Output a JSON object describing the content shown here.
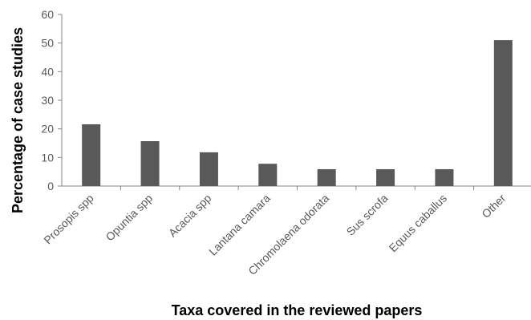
{
  "chart_data": {
    "type": "bar",
    "categories": [
      "Prosopis spp",
      "Opuntia spp",
      "Acacia spp",
      "Lantana camara",
      "Chromolaena odorata",
      "Sus scrofa",
      "Equus caballus",
      "Other"
    ],
    "values": [
      21.6,
      15.7,
      11.8,
      7.8,
      5.9,
      5.9,
      5.9,
      51
    ],
    "title": "",
    "xlabel": "Taxa covered in the reviewed papers",
    "ylabel": "Percentage of case studies",
    "ylim": [
      0,
      60
    ],
    "yticks": [
      0,
      10,
      20,
      30,
      40,
      50,
      60
    ],
    "grid": false,
    "legend": "none",
    "colors": {
      "bar": "#595959",
      "axis": "#868686",
      "text": "#595959"
    }
  }
}
